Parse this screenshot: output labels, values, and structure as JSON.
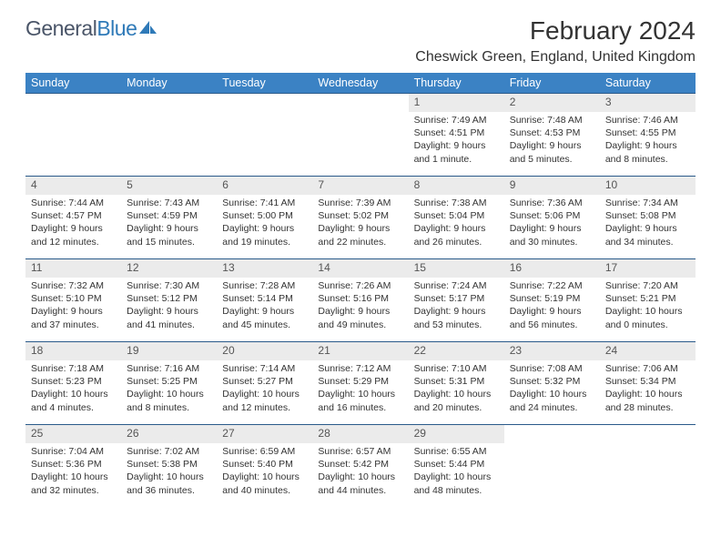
{
  "brand": {
    "part1": "General",
    "part2": "Blue"
  },
  "title": "February 2024",
  "location": "Cheswick Green, England, United Kingdom",
  "colors": {
    "header_bg": "#3b82c4",
    "header_text": "#ffffff",
    "daynum_bg": "#ebebeb",
    "row_divider": "#2a5a8a",
    "logo_gray": "#4a5568",
    "logo_blue": "#2f7ab8"
  },
  "weekdays": [
    "Sunday",
    "Monday",
    "Tuesday",
    "Wednesday",
    "Thursday",
    "Friday",
    "Saturday"
  ],
  "weeks": [
    [
      null,
      null,
      null,
      null,
      {
        "n": "1",
        "sr": "7:49 AM",
        "ss": "4:51 PM",
        "dl": "9 hours and 1 minute."
      },
      {
        "n": "2",
        "sr": "7:48 AM",
        "ss": "4:53 PM",
        "dl": "9 hours and 5 minutes."
      },
      {
        "n": "3",
        "sr": "7:46 AM",
        "ss": "4:55 PM",
        "dl": "9 hours and 8 minutes."
      }
    ],
    [
      {
        "n": "4",
        "sr": "7:44 AM",
        "ss": "4:57 PM",
        "dl": "9 hours and 12 minutes."
      },
      {
        "n": "5",
        "sr": "7:43 AM",
        "ss": "4:59 PM",
        "dl": "9 hours and 15 minutes."
      },
      {
        "n": "6",
        "sr": "7:41 AM",
        "ss": "5:00 PM",
        "dl": "9 hours and 19 minutes."
      },
      {
        "n": "7",
        "sr": "7:39 AM",
        "ss": "5:02 PM",
        "dl": "9 hours and 22 minutes."
      },
      {
        "n": "8",
        "sr": "7:38 AM",
        "ss": "5:04 PM",
        "dl": "9 hours and 26 minutes."
      },
      {
        "n": "9",
        "sr": "7:36 AM",
        "ss": "5:06 PM",
        "dl": "9 hours and 30 minutes."
      },
      {
        "n": "10",
        "sr": "7:34 AM",
        "ss": "5:08 PM",
        "dl": "9 hours and 34 minutes."
      }
    ],
    [
      {
        "n": "11",
        "sr": "7:32 AM",
        "ss": "5:10 PM",
        "dl": "9 hours and 37 minutes."
      },
      {
        "n": "12",
        "sr": "7:30 AM",
        "ss": "5:12 PM",
        "dl": "9 hours and 41 minutes."
      },
      {
        "n": "13",
        "sr": "7:28 AM",
        "ss": "5:14 PM",
        "dl": "9 hours and 45 minutes."
      },
      {
        "n": "14",
        "sr": "7:26 AM",
        "ss": "5:16 PM",
        "dl": "9 hours and 49 minutes."
      },
      {
        "n": "15",
        "sr": "7:24 AM",
        "ss": "5:17 PM",
        "dl": "9 hours and 53 minutes."
      },
      {
        "n": "16",
        "sr": "7:22 AM",
        "ss": "5:19 PM",
        "dl": "9 hours and 56 minutes."
      },
      {
        "n": "17",
        "sr": "7:20 AM",
        "ss": "5:21 PM",
        "dl": "10 hours and 0 minutes."
      }
    ],
    [
      {
        "n": "18",
        "sr": "7:18 AM",
        "ss": "5:23 PM",
        "dl": "10 hours and 4 minutes."
      },
      {
        "n": "19",
        "sr": "7:16 AM",
        "ss": "5:25 PM",
        "dl": "10 hours and 8 minutes."
      },
      {
        "n": "20",
        "sr": "7:14 AM",
        "ss": "5:27 PM",
        "dl": "10 hours and 12 minutes."
      },
      {
        "n": "21",
        "sr": "7:12 AM",
        "ss": "5:29 PM",
        "dl": "10 hours and 16 minutes."
      },
      {
        "n": "22",
        "sr": "7:10 AM",
        "ss": "5:31 PM",
        "dl": "10 hours and 20 minutes."
      },
      {
        "n": "23",
        "sr": "7:08 AM",
        "ss": "5:32 PM",
        "dl": "10 hours and 24 minutes."
      },
      {
        "n": "24",
        "sr": "7:06 AM",
        "ss": "5:34 PM",
        "dl": "10 hours and 28 minutes."
      }
    ],
    [
      {
        "n": "25",
        "sr": "7:04 AM",
        "ss": "5:36 PM",
        "dl": "10 hours and 32 minutes."
      },
      {
        "n": "26",
        "sr": "7:02 AM",
        "ss": "5:38 PM",
        "dl": "10 hours and 36 minutes."
      },
      {
        "n": "27",
        "sr": "6:59 AM",
        "ss": "5:40 PM",
        "dl": "10 hours and 40 minutes."
      },
      {
        "n": "28",
        "sr": "6:57 AM",
        "ss": "5:42 PM",
        "dl": "10 hours and 44 minutes."
      },
      {
        "n": "29",
        "sr": "6:55 AM",
        "ss": "5:44 PM",
        "dl": "10 hours and 48 minutes."
      },
      null,
      null
    ]
  ],
  "labels": {
    "sunrise": "Sunrise:",
    "sunset": "Sunset:",
    "daylight": "Daylight:"
  }
}
